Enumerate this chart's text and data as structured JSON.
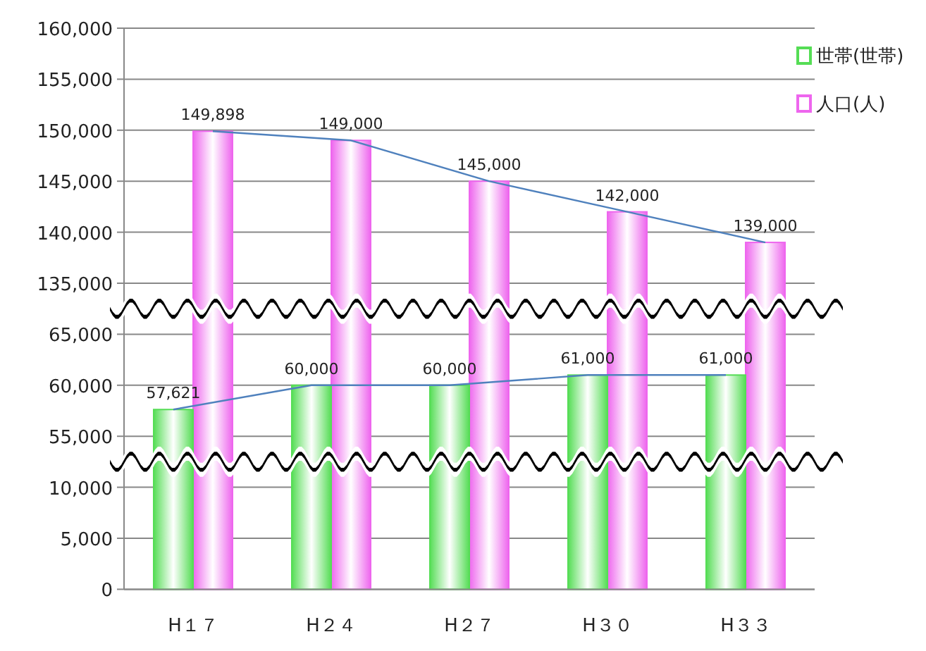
{
  "chart_data": [
    {
      "type": "bar",
      "series": [
        {
          "name": "世帯(世帯)",
          "color": "#55dd55",
          "values": [
            null,
            null,
            null,
            null,
            null
          ]
        },
        {
          "name": "人口(人)",
          "color": "#ee66ee",
          "values": [
            149898,
            149000,
            145000,
            142000,
            139000
          ],
          "value_labels": [
            "149,898",
            "149,000",
            "145,000",
            "142,000",
            "139,000"
          ]
        },
        {
          "type": "line",
          "color": "#4f81bd",
          "values": [
            149898,
            149000,
            145000,
            142000,
            139000
          ]
        }
      ],
      "ylim": [
        132500,
        160000
      ],
      "yticks": [
        {
          "value": 135000,
          "label": "135,000"
        },
        {
          "value": 140000,
          "label": "140,000"
        },
        {
          "value": 145000,
          "label": "145,000"
        },
        {
          "value": 150000,
          "label": "150,000"
        },
        {
          "value": 155000,
          "label": "155,000"
        },
        {
          "value": 160000,
          "label": "160,000"
        }
      ],
      "grid": "y",
      "legend": "top right",
      "tick_labels": "y"
    },
    {
      "type": "bar",
      "series": [
        {
          "color": "#55dd55",
          "values": [
            57621,
            60000,
            60000,
            61000,
            61000
          ],
          "value_labels": [
            "57,621",
            "60,000",
            "60,000",
            "61,000",
            "61,000"
          ]
        },
        {
          "color": "#ee66ee",
          "values": [
            null,
            null,
            null,
            null,
            null
          ]
        },
        {
          "type": "line",
          "color": "#4f81bd",
          "values": [
            57621,
            60000,
            60000,
            61000,
            61000
          ]
        }
      ],
      "ylim": [
        52500,
        67500
      ],
      "yticks": [
        {
          "value": 55000,
          "label": "55,000"
        },
        {
          "value": 60000,
          "label": "60,000"
        },
        {
          "value": 65000,
          "label": "65,000"
        }
      ],
      "grid": "y",
      "tick_labels": "y"
    },
    {
      "type": "bar",
      "categories": [
        "H１７",
        "H２４",
        "H２７",
        "H３０",
        "H３３"
      ],
      "ylim": [
        0,
        12500
      ],
      "yticks": [
        {
          "value": 0,
          "label": "0"
        },
        {
          "value": 5000,
          "label": "5,000"
        },
        {
          "value": 10000,
          "label": "10,000"
        }
      ],
      "grid": "y"
    }
  ]
}
